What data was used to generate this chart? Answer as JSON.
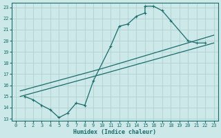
{
  "xlabel": "Humidex (Indice chaleur)",
  "bg_color": "#cce8e8",
  "grid_color": "#aacccc",
  "line_color": "#1a6b6b",
  "xlim": [
    -0.5,
    23.5
  ],
  "ylim": [
    12.8,
    23.4
  ],
  "xticks": [
    0,
    1,
    2,
    3,
    4,
    5,
    6,
    7,
    8,
    9,
    10,
    11,
    12,
    13,
    14,
    15,
    16,
    17,
    18,
    19,
    20,
    21,
    22,
    23
  ],
  "yticks": [
    13,
    14,
    15,
    16,
    17,
    18,
    19,
    20,
    21,
    22,
    23
  ],
  "line1_x": [
    1.0,
    2.0,
    3.0,
    4.0,
    5.0,
    6.0,
    7.0,
    8.0,
    9.0,
    11.0,
    12.0,
    13.0,
    14.0,
    15.0,
    15.0,
    16.0,
    17.0,
    18.0,
    20.0,
    21.0,
    22.0
  ],
  "line1_y": [
    15.0,
    14.7,
    14.2,
    13.8,
    13.1,
    13.5,
    14.4,
    14.2,
    16.4,
    19.5,
    21.3,
    21.5,
    22.2,
    22.5,
    23.1,
    23.1,
    22.7,
    21.8,
    20.0,
    19.8,
    19.8
  ],
  "line2_x": [
    0.5,
    10.0,
    23.0
  ],
  "line2_y": [
    15.0,
    17.0,
    19.8
  ],
  "line3_x": [
    0.5,
    10.0,
    23.0
  ],
  "line3_y": [
    15.5,
    17.5,
    20.5
  ]
}
